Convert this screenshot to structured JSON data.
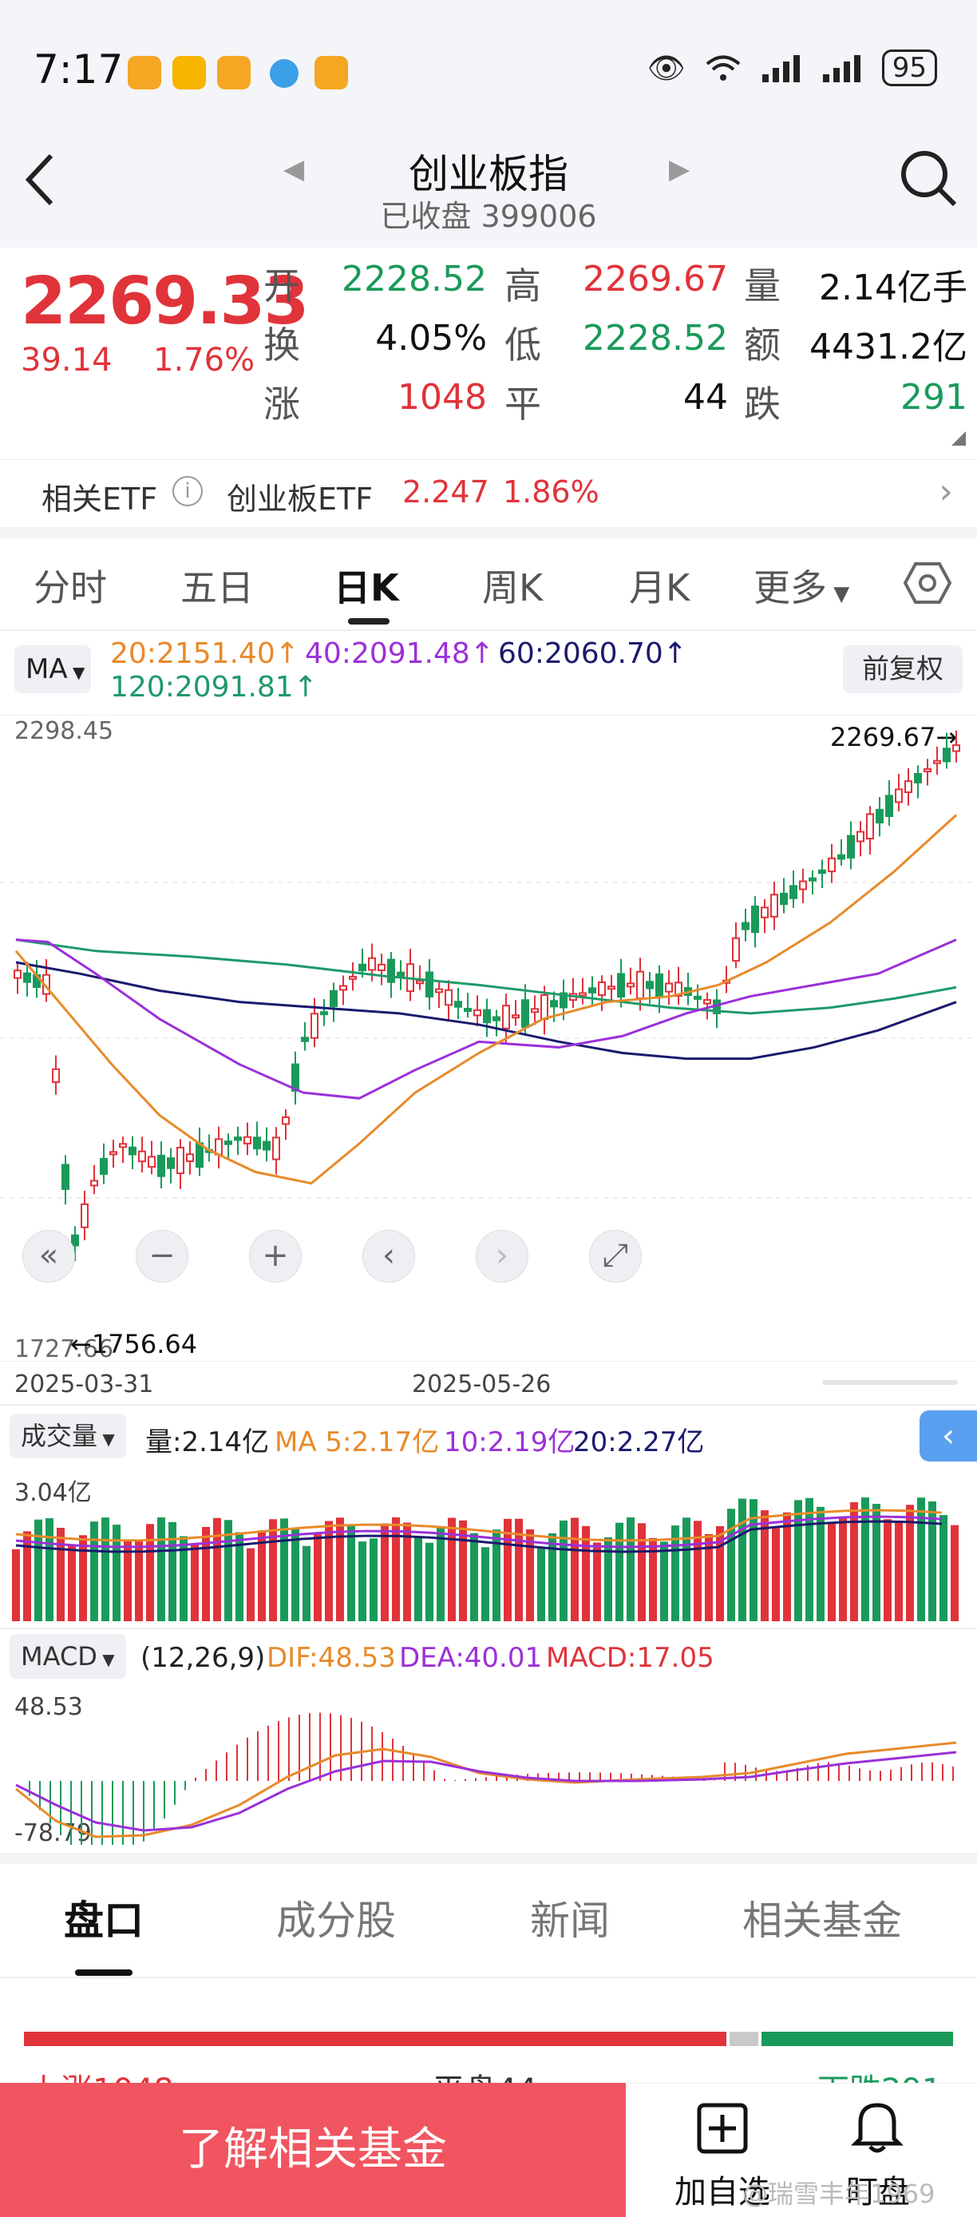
{
  "status_bar": {
    "time": "7:17",
    "battery": "95"
  },
  "header": {
    "title": "创业板指",
    "status": "已收盘",
    "code": "399006"
  },
  "quote": {
    "price": "2269.33",
    "change": "39.14",
    "change_pct": "1.76%",
    "open_label": "开",
    "open": "2228.52",
    "high_label": "高",
    "high": "2269.67",
    "vol_label": "量",
    "vol": "2.14亿手",
    "turnover_label": "换",
    "turnover": "4.05%",
    "low_label": "低",
    "low": "2228.52",
    "amount_label": "额",
    "amount": "4431.2亿",
    "up_label": "涨",
    "up": "1048",
    "flat_label": "平",
    "flat": "44",
    "down_label": "跌",
    "down": "291"
  },
  "etf": {
    "label": "相关ETF",
    "name": "创业板ETF",
    "price": "2.247",
    "pct": "1.86%"
  },
  "chart_tabs": [
    "分时",
    "五日",
    "日K",
    "周K",
    "月K",
    "更多"
  ],
  "ma": {
    "button": "MA",
    "ma20": "20:2151.40↑",
    "ma40": "40:2091.48↑",
    "ma60": "60:2060.70↑",
    "ma120": "120:2091.81↑",
    "fuquan": "前复权"
  },
  "chart_data": {
    "type": "candlestick",
    "y_max_label": "2298.45",
    "y_min_label": "1727.66",
    "high_marker": "2269.67→",
    "low_marker": "←1756.64",
    "x_labels": [
      "2025-03-31",
      "2025-05-26"
    ],
    "series": [
      {
        "name": "MA20",
        "color": "#e88a2a"
      },
      {
        "name": "MA40",
        "color": "#9b30d9"
      },
      {
        "name": "MA60",
        "color": "#1a1a6e"
      },
      {
        "name": "MA120",
        "color": "#1f9a6a"
      }
    ]
  },
  "volume": {
    "button": "成交量",
    "vol": "量:2.14亿",
    "ma5": "MA 5:2.17亿",
    "ma10": "10:2.19亿",
    "ma20": "20:2.27亿",
    "y_label": "3.04亿"
  },
  "macd": {
    "button": "MACD",
    "params": "(12,26,9)",
    "dif": "DIF:48.53",
    "dea": "DEA:40.01",
    "macd": "MACD:17.05",
    "y_max": "48.53",
    "y_min": "-78.79"
  },
  "bottom_tabs": [
    "盘口",
    "成分股",
    "新闻",
    "相关基金"
  ],
  "breadth": {
    "up_text": "上涨1048",
    "flat_text": "平盘44",
    "down_text": "下跌291"
  },
  "footer": {
    "cta": "了解相关基金",
    "add_fav": "加自选",
    "watch": "盯盘",
    "watermark": "@瑞雪丰年1969"
  }
}
